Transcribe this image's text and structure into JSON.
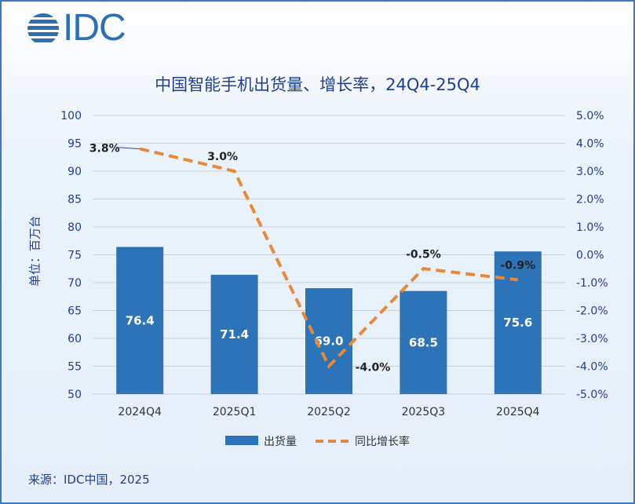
{
  "logo": "IDC",
  "colors": {
    "bar": "#2c73b8",
    "line": "#e58a3c",
    "text": "#1f3f8f",
    "border": "#3b78c0"
  },
  "chart_data": {
    "type": "bar+line",
    "title": "中国智能手机出货量、增长率，24Q4-25Q4",
    "ylabel": "单位：百万台",
    "categories": [
      "2024Q4",
      "2025Q1",
      "2025Q2",
      "2025Q3",
      "2025Q4"
    ],
    "series": [
      {
        "name": "出货量",
        "type": "bar",
        "axis": "left",
        "values": [
          76.4,
          71.4,
          69.0,
          68.5,
          75.6
        ],
        "labels": [
          "76.4",
          "71.4",
          "69.0",
          "68.5",
          "75.6"
        ]
      },
      {
        "name": "同比增长率",
        "type": "line",
        "style": "dashed",
        "axis": "right",
        "values": [
          3.8,
          3.0,
          -4.0,
          -0.5,
          -0.9
        ],
        "labels": [
          "3.8%",
          "3.0%",
          "-4.0%",
          "-0.5%",
          "-0.9%"
        ]
      }
    ],
    "ylim": [
      50,
      100
    ],
    "yticks": [
      "50",
      "55",
      "60",
      "65",
      "70",
      "75",
      "80",
      "85",
      "90",
      "95",
      "100"
    ],
    "y2lim": [
      -5,
      5
    ],
    "y2ticks": [
      "-5.0%",
      "-4.0%",
      "-3.0%",
      "-2.0%",
      "-1.0%",
      "0.0%",
      "1.0%",
      "2.0%",
      "3.0%",
      "4.0%",
      "5.0%"
    ],
    "grid": true,
    "legend": "bottom"
  },
  "source": "来源：IDC中国，2025"
}
